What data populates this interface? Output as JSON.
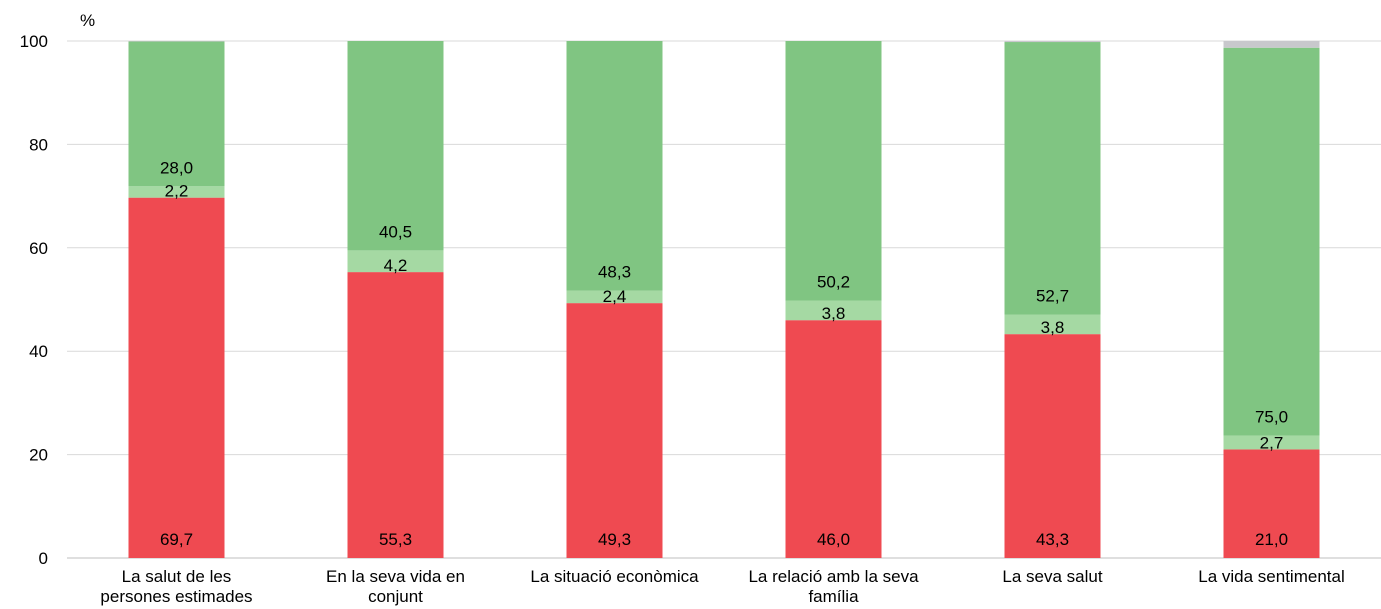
{
  "chart_data": {
    "type": "bar",
    "stacked": true,
    "unit_label": "%",
    "ylim": [
      0,
      100
    ],
    "yticks": [
      "0",
      "20",
      "40",
      "60",
      "80",
      "100"
    ],
    "grid": true,
    "categories": [
      [
        "La salut de les",
        "persones estimades"
      ],
      [
        "En la seva vida en",
        "conjunt"
      ],
      [
        "La situació econòmica"
      ],
      [
        "La relació amb la seva",
        "família"
      ],
      [
        "La seva salut"
      ],
      [
        "La vida sentimental"
      ]
    ],
    "series": [
      {
        "color": "#ef4a51",
        "values": [
          69.7,
          55.3,
          49.3,
          46.0,
          43.3,
          21.0
        ],
        "labels": [
          "69,7",
          "55,3",
          "49,3",
          "46,0",
          "43,3",
          "21,0"
        ]
      },
      {
        "color": "#a5d9a3",
        "values": [
          2.2,
          4.2,
          2.4,
          3.8,
          3.8,
          2.7
        ],
        "labels": [
          "2,2",
          "4,2",
          "2,4",
          "3,8",
          "3,8",
          "2,7"
        ]
      },
      {
        "color": "#80c582",
        "values": [
          28.0,
          40.5,
          48.3,
          50.2,
          52.7,
          75.0
        ],
        "labels": [
          "28,0",
          "40,5",
          "48,3",
          "50,2",
          "52,7",
          "75,0"
        ]
      },
      {
        "color": "#c8c8cc",
        "values": [
          0.1,
          0.0,
          0.0,
          0.0,
          0.2,
          1.3
        ],
        "labels": [
          "",
          "",
          "",
          "",
          "",
          ""
        ]
      }
    ]
  }
}
